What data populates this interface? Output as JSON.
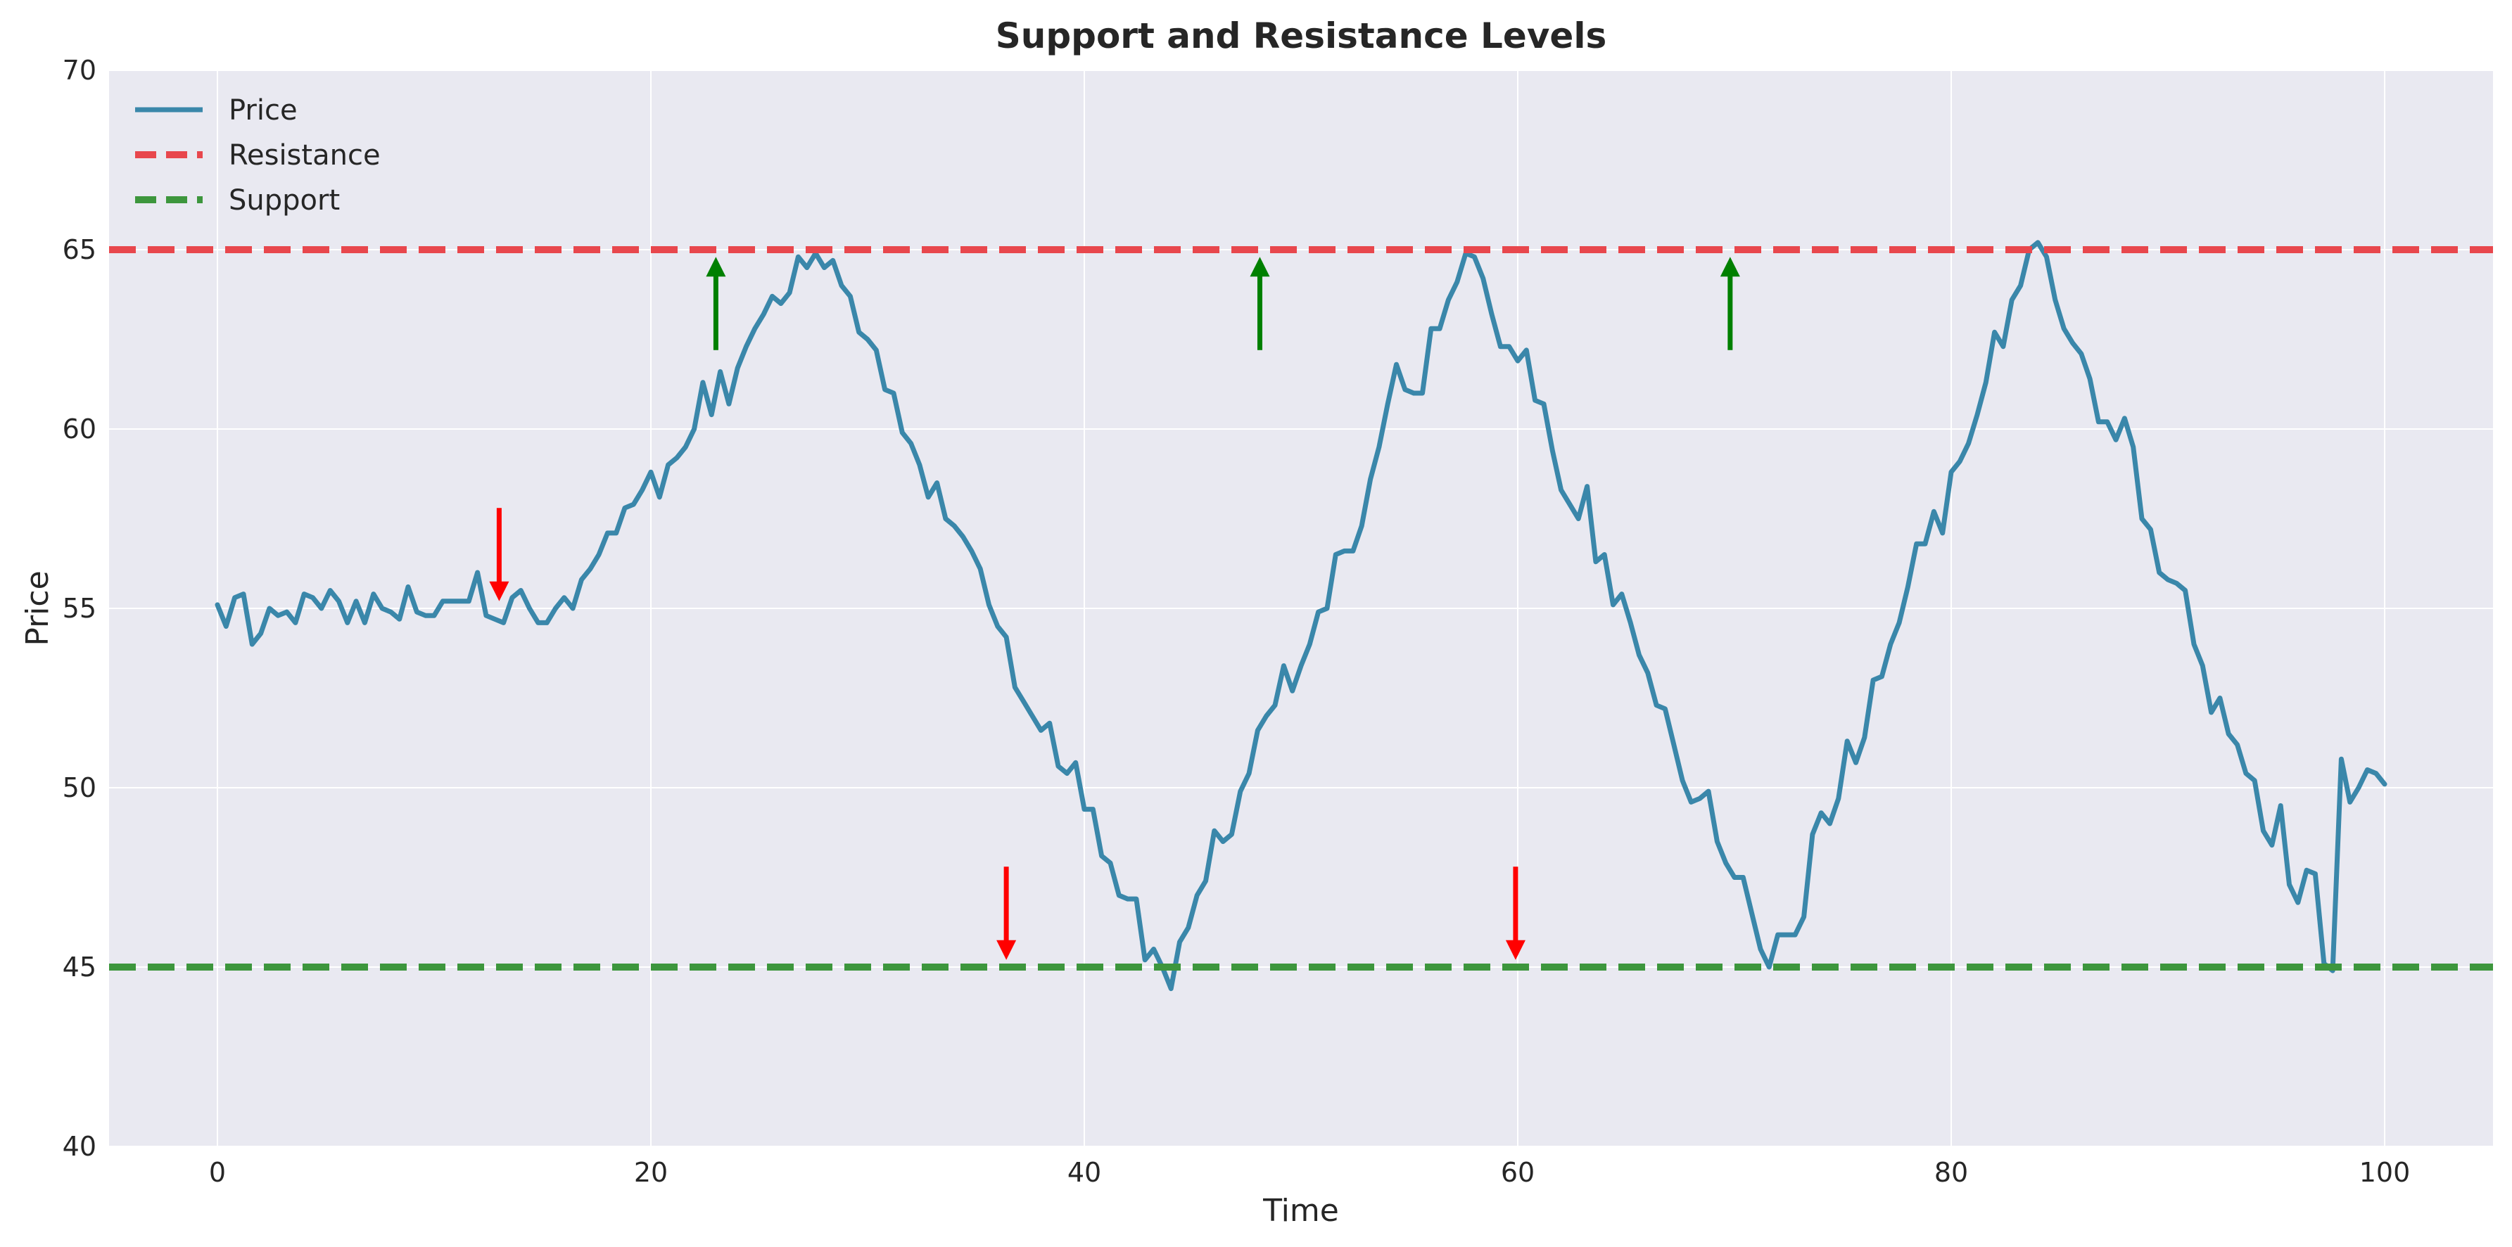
{
  "chart_data": {
    "type": "line",
    "title": "Support and Resistance Levels",
    "xlabel": "Time",
    "ylabel": "Price",
    "xlim": [
      -5,
      105
    ],
    "ylim": [
      40,
      70
    ],
    "xticks": [
      0,
      20,
      40,
      60,
      80,
      100
    ],
    "yticks": [
      40,
      45,
      50,
      55,
      60,
      65,
      70
    ],
    "grid": true,
    "legend_position": "top-left",
    "series": [
      {
        "name": "Price",
        "color": "#3a87aa",
        "style": "solid",
        "points": [
          [
            0,
            55.1
          ],
          [
            0.4,
            54.5
          ],
          [
            0.8,
            55.3
          ],
          [
            1.2,
            55.4
          ],
          [
            1.6,
            54.0
          ],
          [
            2.0,
            54.3
          ],
          [
            2.4,
            55.0
          ],
          [
            2.8,
            54.8
          ],
          [
            3.2,
            54.9
          ],
          [
            3.6,
            54.6
          ],
          [
            4.0,
            55.4
          ],
          [
            4.4,
            55.3
          ],
          [
            4.8,
            55.0
          ],
          [
            5.2,
            55.5
          ],
          [
            5.6,
            55.2
          ],
          [
            6.0,
            54.6
          ],
          [
            6.4,
            55.2
          ],
          [
            6.8,
            54.6
          ],
          [
            7.2,
            55.4
          ],
          [
            7.6,
            55.0
          ],
          [
            8.0,
            54.9
          ],
          [
            8.4,
            54.7
          ],
          [
            8.8,
            55.6
          ],
          [
            9.2,
            54.9
          ],
          [
            9.6,
            54.8
          ],
          [
            10.0,
            54.8
          ],
          [
            10.4,
            55.2
          ],
          [
            10.8,
            55.2
          ],
          [
            11.2,
            55.2
          ],
          [
            11.6,
            55.2
          ],
          [
            12.0,
            56.0
          ],
          [
            12.4,
            54.8
          ],
          [
            12.8,
            54.7
          ],
          [
            13.2,
            54.6
          ],
          [
            13.6,
            55.3
          ],
          [
            14.0,
            55.5
          ],
          [
            14.4,
            55.0
          ],
          [
            14.8,
            54.6
          ],
          [
            15.2,
            54.6
          ],
          [
            15.6,
            55.0
          ],
          [
            16.0,
            55.3
          ],
          [
            16.4,
            55.0
          ],
          [
            16.8,
            55.8
          ],
          [
            17.2,
            56.1
          ],
          [
            17.6,
            56.5
          ],
          [
            18.0,
            57.1
          ],
          [
            18.4,
            57.1
          ],
          [
            18.8,
            57.8
          ],
          [
            19.2,
            57.9
          ],
          [
            19.6,
            58.3
          ],
          [
            20.0,
            58.8
          ],
          [
            20.4,
            58.1
          ],
          [
            20.8,
            59.0
          ],
          [
            21.2,
            59.2
          ],
          [
            21.6,
            59.5
          ],
          [
            22.0,
            60.0
          ],
          [
            22.4,
            61.3
          ],
          [
            22.8,
            60.4
          ],
          [
            23.2,
            61.6
          ],
          [
            23.6,
            60.7
          ],
          [
            24.0,
            61.7
          ],
          [
            24.4,
            62.3
          ],
          [
            24.8,
            62.8
          ],
          [
            25.2,
            63.2
          ],
          [
            25.6,
            63.7
          ],
          [
            26.0,
            63.5
          ],
          [
            26.4,
            63.8
          ],
          [
            26.8,
            64.8
          ],
          [
            27.2,
            64.5
          ],
          [
            27.6,
            64.9
          ],
          [
            28.0,
            64.5
          ],
          [
            28.4,
            64.7
          ],
          [
            28.8,
            64.0
          ],
          [
            29.2,
            63.7
          ],
          [
            29.6,
            62.7
          ],
          [
            30.0,
            62.5
          ],
          [
            30.4,
            62.2
          ],
          [
            30.8,
            61.1
          ],
          [
            31.2,
            61.0
          ],
          [
            31.6,
            59.9
          ],
          [
            32.0,
            59.6
          ],
          [
            32.4,
            59.0
          ],
          [
            32.8,
            58.1
          ],
          [
            33.2,
            58.5
          ],
          [
            33.6,
            57.5
          ],
          [
            34.0,
            57.3
          ],
          [
            34.4,
            57.0
          ],
          [
            34.8,
            56.6
          ],
          [
            35.2,
            56.1
          ],
          [
            35.6,
            55.1
          ],
          [
            36.0,
            54.5
          ],
          [
            36.4,
            54.2
          ],
          [
            36.8,
            52.8
          ],
          [
            37.2,
            52.4
          ],
          [
            37.6,
            52.0
          ],
          [
            38.0,
            51.6
          ],
          [
            38.4,
            51.8
          ],
          [
            38.8,
            50.6
          ],
          [
            39.2,
            50.4
          ],
          [
            39.6,
            50.7
          ],
          [
            40.0,
            49.4
          ],
          [
            40.4,
            49.4
          ],
          [
            40.8,
            48.1
          ],
          [
            41.2,
            47.9
          ],
          [
            41.6,
            47.0
          ],
          [
            42.0,
            46.9
          ],
          [
            42.4,
            46.9
          ],
          [
            42.8,
            45.2
          ],
          [
            43.2,
            45.5
          ],
          [
            43.6,
            45.0
          ],
          [
            44.0,
            44.4
          ],
          [
            44.4,
            45.7
          ],
          [
            44.8,
            46.1
          ],
          [
            45.2,
            47.0
          ],
          [
            45.6,
            47.4
          ],
          [
            46.0,
            48.8
          ],
          [
            46.4,
            48.5
          ],
          [
            46.8,
            48.7
          ],
          [
            47.2,
            49.9
          ],
          [
            47.6,
            50.4
          ],
          [
            48.0,
            51.6
          ],
          [
            48.4,
            52.0
          ],
          [
            48.8,
            52.3
          ],
          [
            49.2,
            53.4
          ],
          [
            49.6,
            52.7
          ],
          [
            50.0,
            53.4
          ],
          [
            50.4,
            54.0
          ],
          [
            50.8,
            54.9
          ],
          [
            51.2,
            55.0
          ],
          [
            51.6,
            56.5
          ],
          [
            52.0,
            56.6
          ],
          [
            52.4,
            56.6
          ],
          [
            52.8,
            57.3
          ],
          [
            53.2,
            58.6
          ],
          [
            53.6,
            59.5
          ],
          [
            54.0,
            60.7
          ],
          [
            54.4,
            61.8
          ],
          [
            54.8,
            61.1
          ],
          [
            55.2,
            61.0
          ],
          [
            55.6,
            61.0
          ],
          [
            56.0,
            62.8
          ],
          [
            56.4,
            62.8
          ],
          [
            56.8,
            63.6
          ],
          [
            57.2,
            64.1
          ],
          [
            57.6,
            64.9
          ],
          [
            58.0,
            64.8
          ],
          [
            58.4,
            64.2
          ],
          [
            58.8,
            63.2
          ],
          [
            59.2,
            62.3
          ],
          [
            59.6,
            62.3
          ],
          [
            60.0,
            61.9
          ],
          [
            60.4,
            62.2
          ],
          [
            60.8,
            60.8
          ],
          [
            61.2,
            60.7
          ],
          [
            61.6,
            59.4
          ],
          [
            62.0,
            58.3
          ],
          [
            62.4,
            57.9
          ],
          [
            62.8,
            57.5
          ],
          [
            63.2,
            58.4
          ],
          [
            63.6,
            56.3
          ],
          [
            64.0,
            56.5
          ],
          [
            64.4,
            55.1
          ],
          [
            64.8,
            55.4
          ],
          [
            65.2,
            54.6
          ],
          [
            65.6,
            53.7
          ],
          [
            66.0,
            53.2
          ],
          [
            66.4,
            52.3
          ],
          [
            66.8,
            52.2
          ],
          [
            67.2,
            51.2
          ],
          [
            67.6,
            50.2
          ],
          [
            68.0,
            49.6
          ],
          [
            68.4,
            49.7
          ],
          [
            68.8,
            49.9
          ],
          [
            69.2,
            48.5
          ],
          [
            69.6,
            47.9
          ],
          [
            70.0,
            47.5
          ],
          [
            70.4,
            47.5
          ],
          [
            70.8,
            46.5
          ],
          [
            71.2,
            45.5
          ],
          [
            71.6,
            45.0
          ],
          [
            72.0,
            45.9
          ],
          [
            72.4,
            45.9
          ],
          [
            72.8,
            45.9
          ],
          [
            73.2,
            46.4
          ],
          [
            73.6,
            48.7
          ],
          [
            74.0,
            49.3
          ],
          [
            74.4,
            49.0
          ],
          [
            74.8,
            49.7
          ],
          [
            75.2,
            51.3
          ],
          [
            75.6,
            50.7
          ],
          [
            76.0,
            51.4
          ],
          [
            76.4,
            53.0
          ],
          [
            76.8,
            53.1
          ],
          [
            77.2,
            54.0
          ],
          [
            77.6,
            54.6
          ],
          [
            78.0,
            55.6
          ],
          [
            78.4,
            56.8
          ],
          [
            78.8,
            56.8
          ],
          [
            79.2,
            57.7
          ],
          [
            79.6,
            57.1
          ],
          [
            80.0,
            58.8
          ],
          [
            80.4,
            59.1
          ],
          [
            80.8,
            59.6
          ],
          [
            81.2,
            60.4
          ],
          [
            81.6,
            61.3
          ],
          [
            82.0,
            62.7
          ],
          [
            82.4,
            62.3
          ],
          [
            82.8,
            63.6
          ],
          [
            83.2,
            64.0
          ],
          [
            83.6,
            65.0
          ],
          [
            84.0,
            65.2
          ],
          [
            84.4,
            64.8
          ],
          [
            84.8,
            63.6
          ],
          [
            85.2,
            62.8
          ],
          [
            85.6,
            62.4
          ],
          [
            86.0,
            62.1
          ],
          [
            86.4,
            61.4
          ],
          [
            86.8,
            60.2
          ],
          [
            87.2,
            60.2
          ],
          [
            87.6,
            59.7
          ],
          [
            88.0,
            60.3
          ],
          [
            88.4,
            59.5
          ],
          [
            88.8,
            57.5
          ],
          [
            89.2,
            57.2
          ],
          [
            89.6,
            56.0
          ],
          [
            90.0,
            55.8
          ],
          [
            90.4,
            55.7
          ],
          [
            90.8,
            55.5
          ],
          [
            91.2,
            54.0
          ],
          [
            91.6,
            53.4
          ],
          [
            92.0,
            52.1
          ],
          [
            92.4,
            52.5
          ],
          [
            92.8,
            51.5
          ],
          [
            93.2,
            51.2
          ],
          [
            93.6,
            50.4
          ],
          [
            94.0,
            50.2
          ],
          [
            94.4,
            48.8
          ],
          [
            94.8,
            48.4
          ],
          [
            95.2,
            49.5
          ],
          [
            95.6,
            47.3
          ],
          [
            96.0,
            46.8
          ],
          [
            96.4,
            47.7
          ],
          [
            96.8,
            47.6
          ],
          [
            97.2,
            45.1
          ],
          [
            97.6,
            44.9
          ],
          [
            98.0,
            50.8
          ],
          [
            98.4,
            49.6
          ],
          [
            98.8,
            50.0
          ],
          [
            99.2,
            50.5
          ],
          [
            99.6,
            50.4
          ],
          [
            100.0,
            50.1
          ]
        ]
      },
      {
        "name": "Resistance",
        "color": "#e8474d",
        "style": "dashed",
        "y": 65
      },
      {
        "name": "Support",
        "color": "#3d963d",
        "style": "dashed",
        "y": 45
      }
    ],
    "annotations": [
      {
        "kind": "arrow-down",
        "color": "#ff0000",
        "x": 13,
        "y_from": 57.8,
        "y_to": 55.2
      },
      {
        "kind": "arrow-up",
        "color": "#008000",
        "x": 23,
        "y_from": 62.2,
        "y_to": 64.8
      },
      {
        "kind": "arrow-down",
        "color": "#ff0000",
        "x": 36.4,
        "y_from": 47.8,
        "y_to": 45.2
      },
      {
        "kind": "arrow-up",
        "color": "#008000",
        "x": 48.1,
        "y_from": 62.2,
        "y_to": 64.8
      },
      {
        "kind": "arrow-down",
        "color": "#ff0000",
        "x": 59.9,
        "y_from": 47.8,
        "y_to": 45.2
      },
      {
        "kind": "arrow-up",
        "color": "#008000",
        "x": 69.8,
        "y_from": 62.2,
        "y_to": 64.8
      }
    ]
  }
}
